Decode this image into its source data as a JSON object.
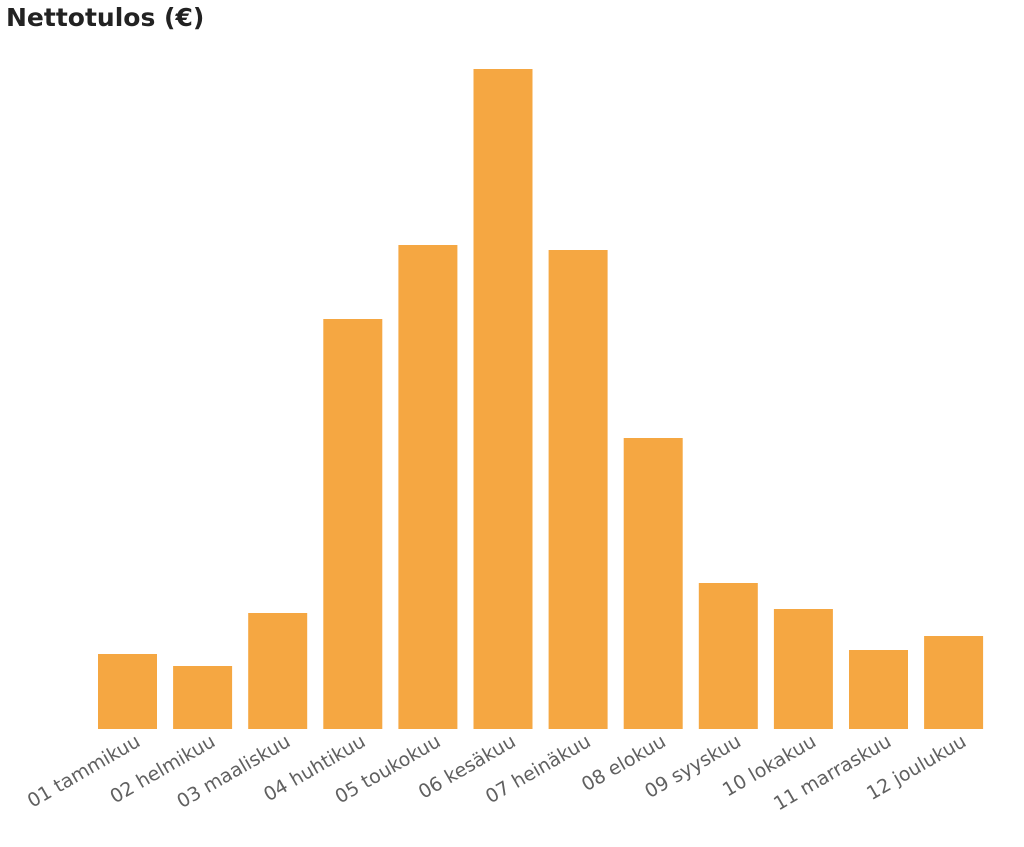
{
  "chart_data": {
    "type": "bar",
    "title": "Nettotulos (€)",
    "categories": [
      "01 tammikuu",
      "02 helmikuu",
      "03 maaliskuu",
      "04 huhtikuu",
      "05 toukokuu",
      "06 kesäkuu",
      "07 heinäkuu",
      "08 elokuu",
      "09 syyskuu",
      "10 lokakuu",
      "11 marraskuu",
      "12 joulukuu"
    ],
    "values": [
      75,
      63,
      116,
      410,
      484,
      660,
      479,
      291,
      146,
      120,
      79,
      93
    ],
    "xlabel": "",
    "ylabel": "",
    "ylim": [
      0,
      660
    ],
    "grid": false,
    "legend": "none",
    "bar_color": "#F5A742",
    "label_color": "#606060",
    "title_color": "#222222"
  }
}
